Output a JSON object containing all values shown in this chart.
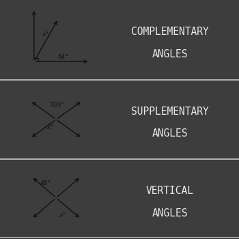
{
  "bg_color": "#3d3d3d",
  "panel_bg": "#ffffff",
  "divider_color": "#c8c8c8",
  "text_color": "#e8e8e8",
  "draw_color": "#111111",
  "fig_w": 3.5,
  "fig_h": 3.5,
  "dpi": 100,
  "rows": [
    {
      "title_line1": "COMPLEMENTARY",
      "title_line2": "ANGLES",
      "angle1_label": "x°",
      "angle2_label": "64°",
      "type": "complementary"
    },
    {
      "title_line1": "SUPPLEMENTARY",
      "title_line2": "ANGLES",
      "angle1_label": "103°",
      "angle2_label": "x°",
      "type": "supplementary"
    },
    {
      "title_line1": "VERTICAL",
      "title_line2": "ANGLES",
      "angle1_label": "48°",
      "angle2_label": "x°",
      "type": "vertical"
    }
  ]
}
